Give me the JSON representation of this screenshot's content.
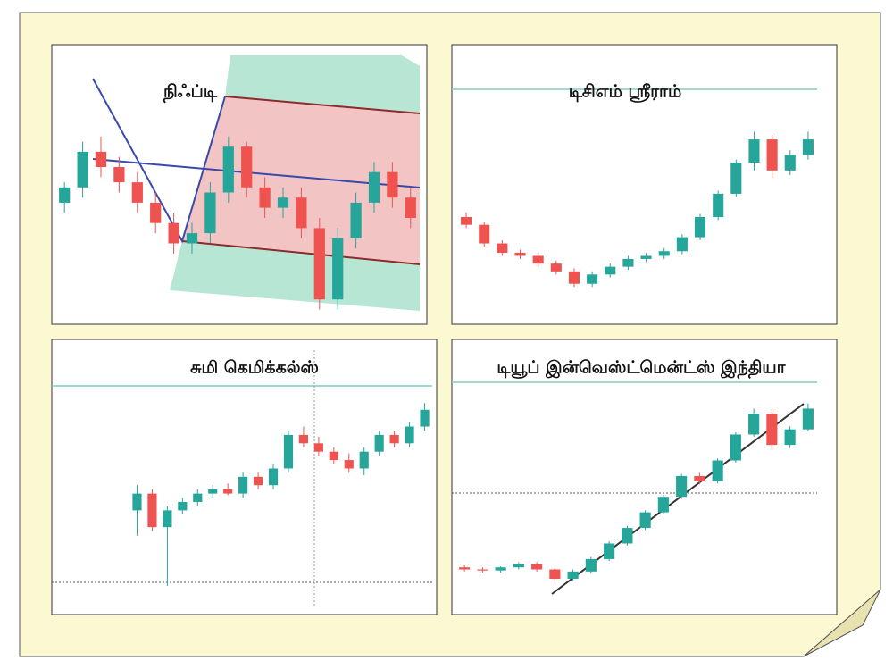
{
  "chart_data": [
    {
      "type": "candlestick",
      "title": "நிஃப்டி",
      "up_color": "#26a69a",
      "down_color": "#ef5350",
      "ylim": [
        15000,
        19000
      ],
      "open": [
        17300,
        17600,
        18300,
        18000,
        17700,
        17300,
        16900,
        16500,
        16700,
        17500,
        18400,
        17600,
        17200,
        17400,
        16800,
        15400,
        16600,
        17300,
        17900,
        17400
      ],
      "high": [
        17700,
        18500,
        18600,
        18200,
        17900,
        17500,
        17100,
        16900,
        17700,
        18600,
        18500,
        17800,
        17600,
        17600,
        17000,
        16800,
        17500,
        18100,
        18100,
        17600
      ],
      "low": [
        17100,
        17400,
        17800,
        17500,
        17100,
        16700,
        16300,
        16300,
        16500,
        17300,
        17400,
        17000,
        17000,
        16600,
        15200,
        15200,
        16400,
        17100,
        17200,
        16800
      ],
      "close": [
        17600,
        18300,
        18000,
        17700,
        17300,
        16900,
        16500,
        16700,
        17500,
        18400,
        17600,
        17200,
        17400,
        16800,
        15400,
        16600,
        17300,
        17900,
        17400,
        17000
      ]
    },
    {
      "type": "candlestick",
      "title": "டிசிஎம் ஸ்ரீராம்",
      "up_color": "#26a69a",
      "down_color": "#ef5350",
      "ylim": [
        0,
        1300
      ],
      "open": [
        650,
        600,
        480,
        420,
        400,
        350,
        300,
        220,
        280,
        330,
        380,
        400,
        430,
        520,
        650,
        800,
        1000,
        1150,
        950,
        1050
      ],
      "high": [
        680,
        620,
        500,
        440,
        420,
        370,
        320,
        300,
        350,
        400,
        420,
        450,
        540,
        670,
        820,
        1020,
        1200,
        1180,
        1080,
        1200
      ],
      "low": [
        580,
        460,
        400,
        380,
        330,
        280,
        200,
        200,
        260,
        310,
        360,
        380,
        410,
        500,
        630,
        780,
        950,
        900,
        920,
        1020
      ],
      "close": [
        600,
        480,
        420,
        400,
        350,
        300,
        220,
        280,
        330,
        380,
        400,
        430,
        520,
        650,
        800,
        1000,
        1150,
        950,
        1050,
        1150
      ]
    },
    {
      "type": "candlestick",
      "title": "சுமி கெமிக்கல்ஸ்",
      "up_color": "#26a69a",
      "down_color": "#ef5350",
      "ylim": [
        300,
        560
      ],
      "open": [
        420,
        440,
        400,
        420,
        430,
        440,
        445,
        440,
        460,
        450,
        470,
        510,
        500,
        490,
        480,
        470,
        490,
        510,
        500,
        520
      ],
      "high": [
        450,
        445,
        425,
        435,
        445,
        450,
        452,
        465,
        465,
        475,
        515,
        520,
        508,
        495,
        488,
        495,
        515,
        515,
        525,
        548
      ],
      "low": [
        390,
        395,
        330,
        415,
        425,
        435,
        438,
        435,
        445,
        445,
        465,
        495,
        485,
        475,
        465,
        462,
        485,
        495,
        495,
        515
      ],
      "close": [
        440,
        400,
        420,
        430,
        440,
        445,
        440,
        460,
        450,
        470,
        510,
        500,
        490,
        480,
        470,
        490,
        510,
        500,
        520,
        540
      ]
    },
    {
      "type": "candlestick",
      "title": "டியூப் இன்வெஸ்ட்மென்ட்ஸ் இந்தியா",
      "up_color": "#26a69a",
      "down_color": "#ef5350",
      "ylim": [
        0,
        2100
      ],
      "open": [
        420,
        400,
        390,
        420,
        450,
        400,
        310,
        380,
        500,
        650,
        800,
        950,
        1100,
        1300,
        1250,
        1450,
        1700,
        1900,
        1600,
        1750
      ],
      "high": [
        440,
        420,
        430,
        470,
        470,
        420,
        400,
        520,
        670,
        820,
        970,
        1120,
        1320,
        1330,
        1470,
        1720,
        1950,
        1950,
        1780,
        2000
      ],
      "low": [
        380,
        370,
        370,
        400,
        380,
        290,
        290,
        360,
        480,
        630,
        780,
        930,
        1080,
        1220,
        1230,
        1430,
        1680,
        1550,
        1570,
        1730
      ],
      "close": [
        400,
        390,
        420,
        450,
        400,
        310,
        380,
        500,
        650,
        800,
        950,
        1100,
        1300,
        1250,
        1450,
        1700,
        1900,
        1600,
        1750,
        1950
      ]
    }
  ]
}
